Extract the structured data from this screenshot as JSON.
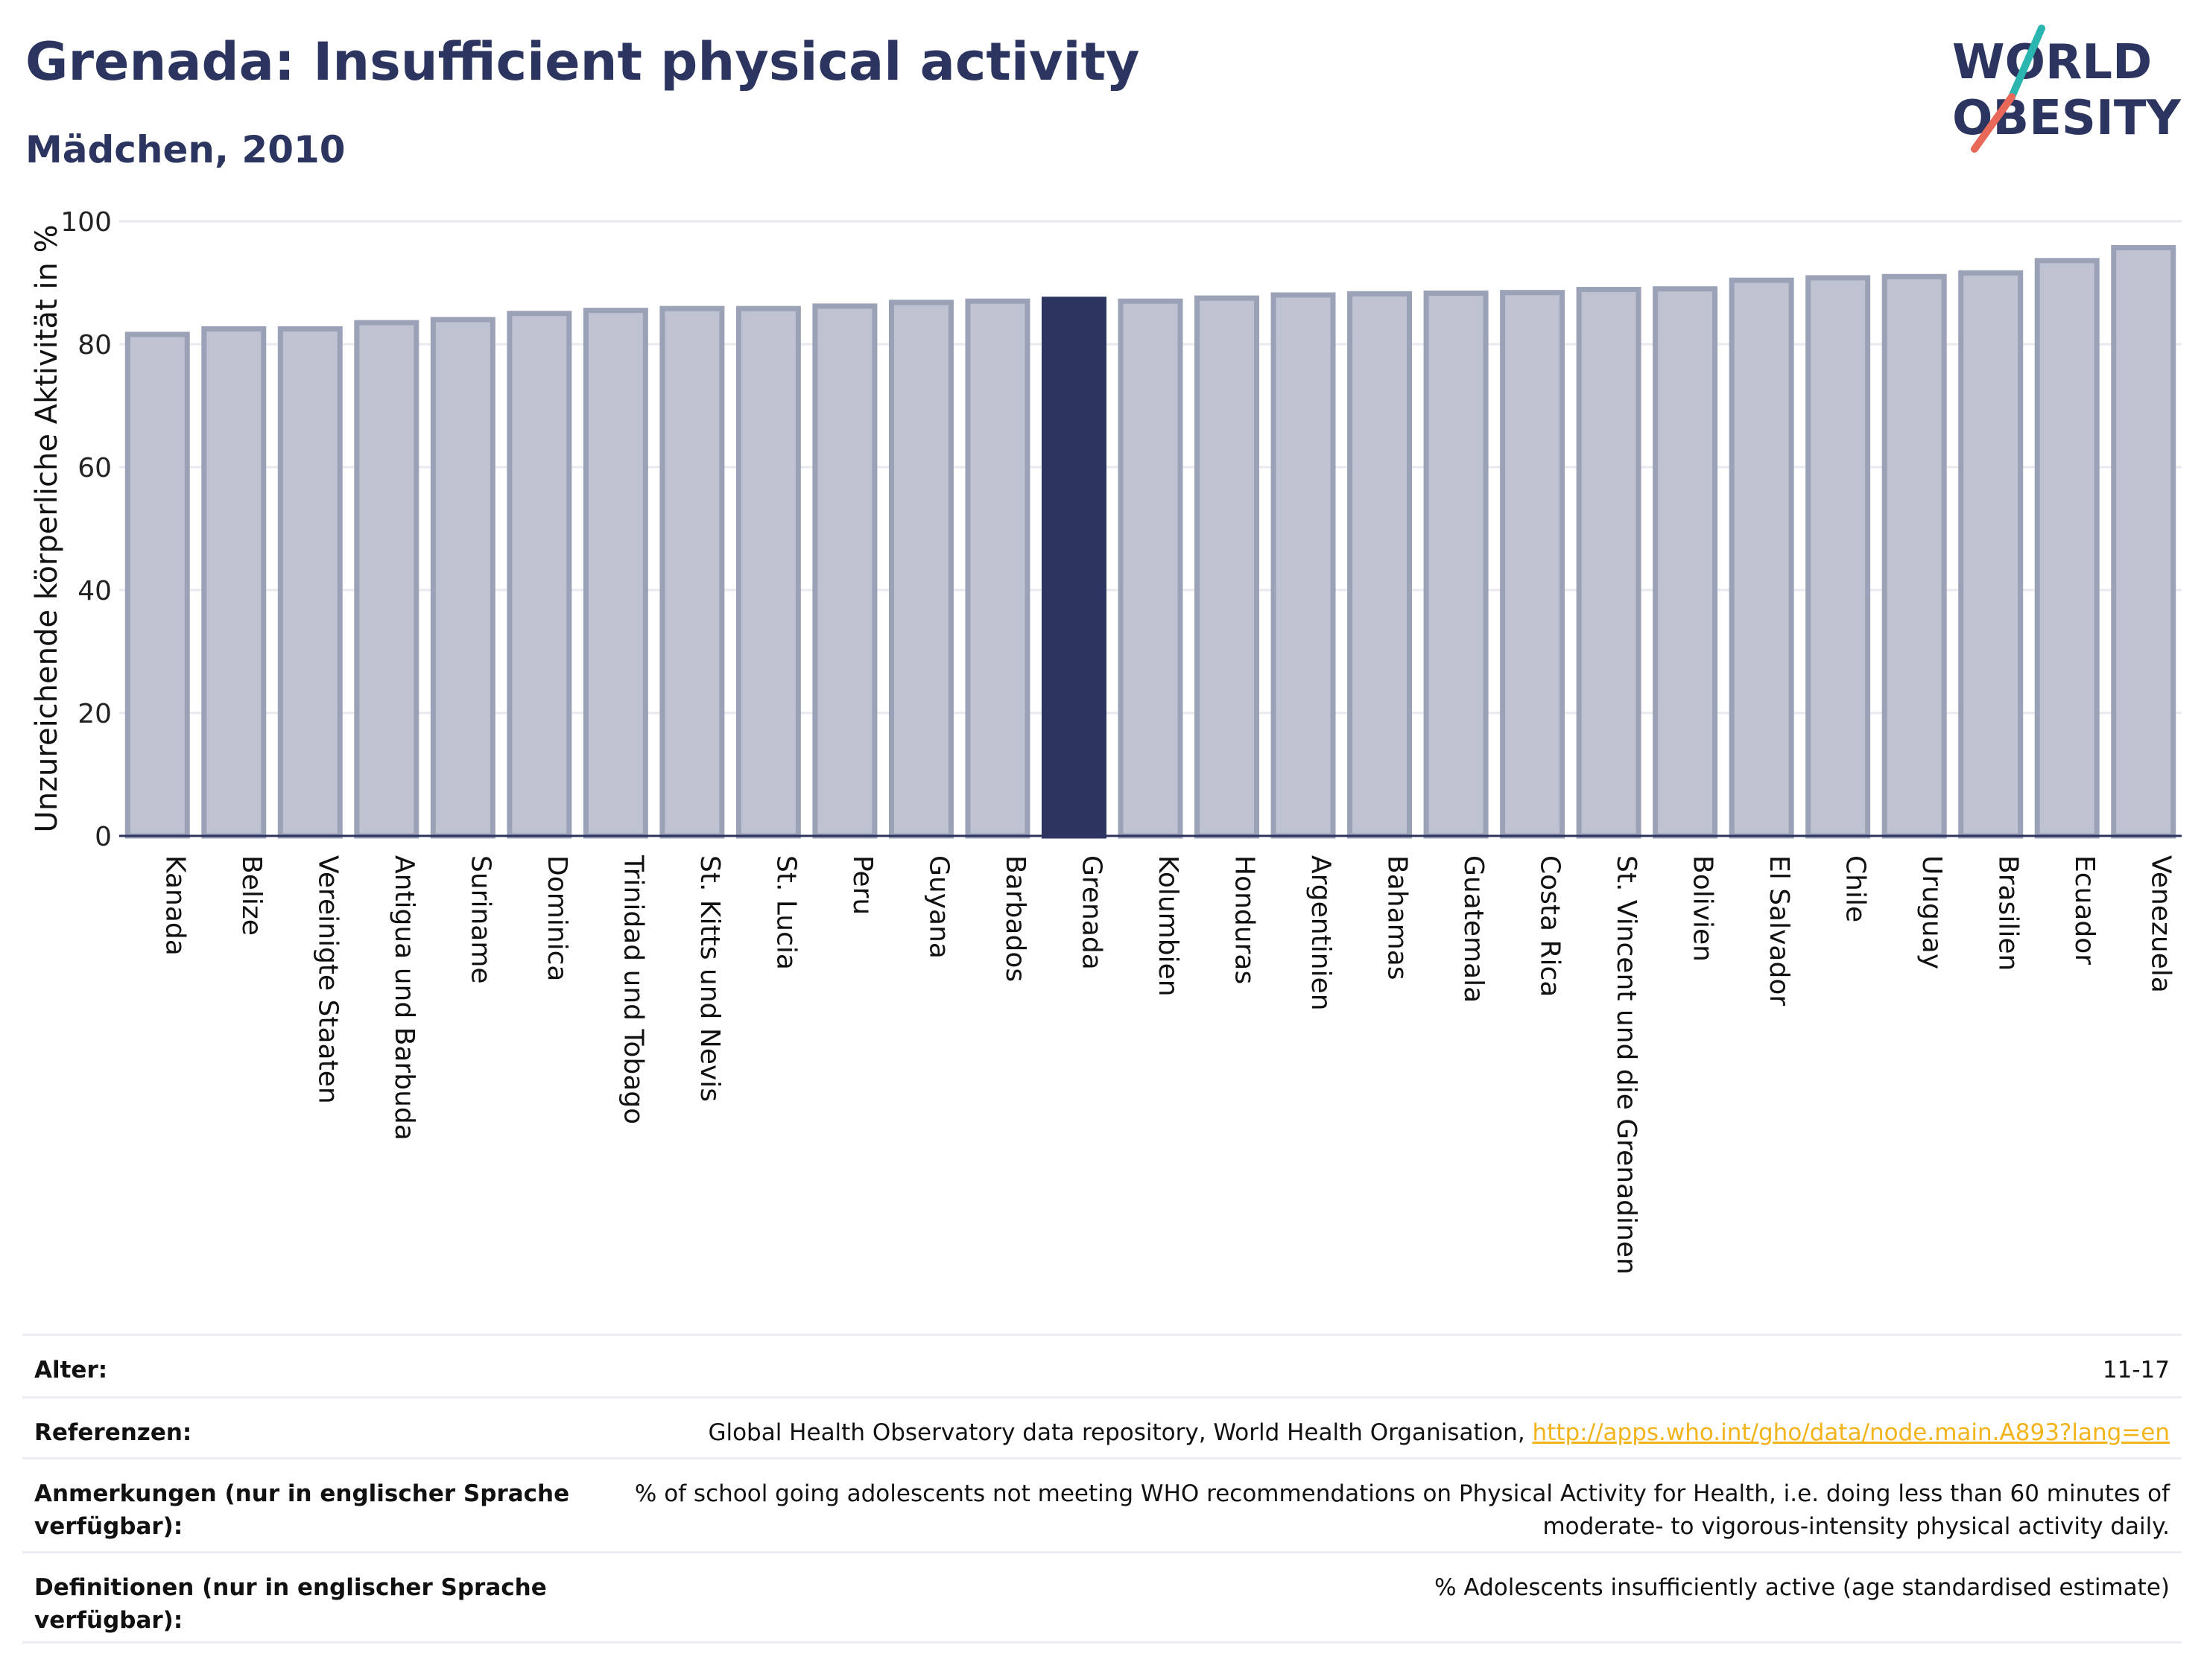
{
  "header": {
    "title": "Grenada: Insufficient physical activity",
    "subtitle": "Mädchen, 2010"
  },
  "logo": {
    "line1": "WORLD",
    "line2": "OBESITY",
    "accent_teal": "#2bb5b0",
    "accent_red": "#e8685a"
  },
  "colors": {
    "bar": "#bfc3d1",
    "bar_border": "#9ba1b7",
    "highlight": "#2b355f",
    "grid": "#e8eaf0",
    "axis": "#2b355f"
  },
  "chart_data": {
    "type": "bar",
    "ylabel": "Unzureichende körperliche Aktivität in %",
    "ylim": [
      0,
      100
    ],
    "yticks": [
      0,
      20,
      40,
      60,
      80,
      100
    ],
    "highlight": "Grenada",
    "categories": [
      "Kanada",
      "Belize",
      "Vereinigte Staaten",
      "Antigua und Barbuda",
      "Suriname",
      "Dominica",
      "Trinidad und Tobago",
      "St. Kitts und Nevis",
      "St. Lucia",
      "Peru",
      "Guyana",
      "Barbados",
      "Grenada",
      "Kolumbien",
      "Honduras",
      "Argentinien",
      "Bahamas",
      "Guatemala",
      "Costa Rica",
      "St. Vincent und die Grenadinen",
      "Bolivien",
      "El Salvador",
      "Chile",
      "Uruguay",
      "Brasilien",
      "Ecuador",
      "Venezuela"
    ],
    "values": [
      81.6,
      82.5,
      82.5,
      83.5,
      84.0,
      85.0,
      85.5,
      85.8,
      85.8,
      86.2,
      86.8,
      87.0,
      87.3,
      87.0,
      87.5,
      88.0,
      88.2,
      88.3,
      88.4,
      88.9,
      89.0,
      90.4,
      90.8,
      91.0,
      91.6,
      93.6,
      95.7
    ]
  },
  "info": {
    "rows": [
      {
        "label": "Alter:",
        "value": "11-17"
      },
      {
        "label": "Referenzen:",
        "value": "Global Health Observatory data repository, World Health Organisation, ",
        "link": "http://apps.who.int/gho/data/node.main.A893?lang=en"
      },
      {
        "label": "Anmerkungen (nur in englischer Sprache verfügbar):",
        "value": "% of school going adolescents not meeting WHO recommendations on Physical Activity for Health, i.e. doing less than 60 minutes of moderate- to vigorous-intensity physical activity daily."
      },
      {
        "label": "Definitionen (nur in englischer Sprache verfügbar):",
        "value": "% Adolescents insufficiently active (age standardised estimate)"
      }
    ]
  }
}
